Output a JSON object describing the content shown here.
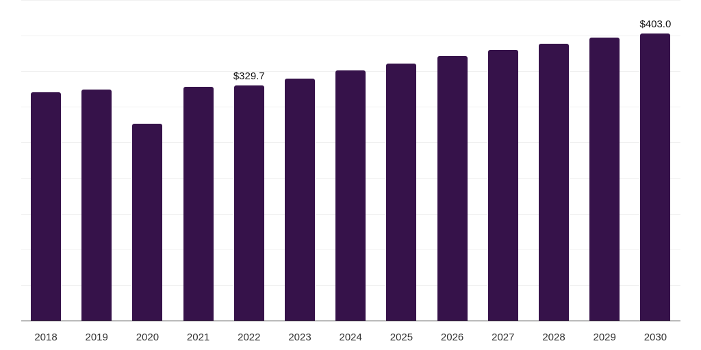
{
  "chart_data": {
    "type": "bar",
    "title": "",
    "xlabel": "",
    "ylabel": "",
    "categories": [
      "2018",
      "2019",
      "2020",
      "2021",
      "2022",
      "2023",
      "2024",
      "2025",
      "2026",
      "2027",
      "2028",
      "2029",
      "2030"
    ],
    "values": [
      320.2,
      324.0,
      276.0,
      328.0,
      329.7,
      340.0,
      351.0,
      361.0,
      371.0,
      380.0,
      389.0,
      397.0,
      403.0
    ],
    "data_labels": [
      {
        "category": "2022",
        "text": "$329.7"
      },
      {
        "category": "2030",
        "text": "$403.0"
      }
    ],
    "ylim": [
      0,
      450
    ],
    "gridlines": true,
    "legend": null,
    "bar_color": "#36124a"
  }
}
